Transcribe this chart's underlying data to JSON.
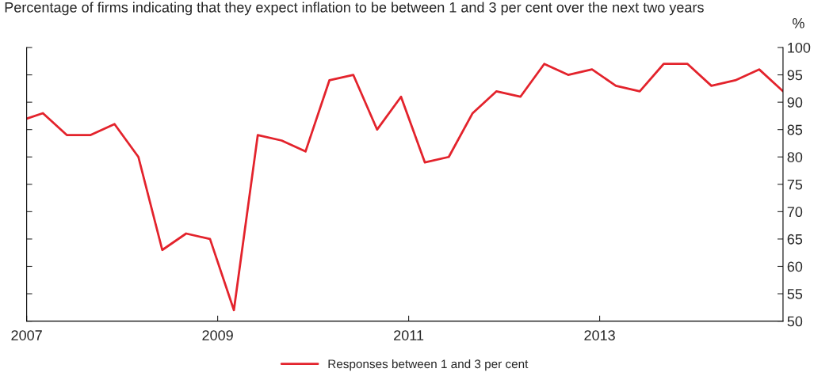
{
  "chart_data": {
    "type": "line",
    "title": "Percentage of firms indicating that they expect inflation to be between 1 and 3 per cent over the next two years",
    "ylabel": "%",
    "x": [
      2007.0,
      2007.17,
      2007.42,
      2007.67,
      2007.92,
      2008.17,
      2008.42,
      2008.67,
      2008.92,
      2009.17,
      2009.42,
      2009.67,
      2009.92,
      2010.17,
      2010.42,
      2010.67,
      2010.92,
      2011.17,
      2011.42,
      2011.67,
      2011.92,
      2012.17,
      2012.42,
      2012.67,
      2012.92,
      2013.17,
      2013.42,
      2013.67,
      2013.92,
      2014.17,
      2014.42,
      2014.67,
      2014.92
    ],
    "series": [
      {
        "name": "Responses between 1 and 3 per cent",
        "color": "#e3232c",
        "values": [
          87,
          88,
          84,
          84,
          86,
          80,
          63,
          66,
          65,
          52,
          84,
          83,
          81,
          94,
          95,
          85,
          91,
          79,
          80,
          88,
          92,
          91,
          97,
          95,
          96,
          93,
          92,
          97,
          97,
          93,
          94,
          96,
          92
        ]
      }
    ],
    "xlim": [
      2007,
      2014.92
    ],
    "xticks": [
      2007,
      2009,
      2011,
      2013
    ],
    "ylim": [
      50,
      100
    ],
    "yticks": [
      50,
      55,
      60,
      65,
      70,
      75,
      80,
      85,
      90,
      95,
      100
    ],
    "grid": false,
    "legend": "bottom",
    "marker": "none",
    "line_style": "solid"
  }
}
